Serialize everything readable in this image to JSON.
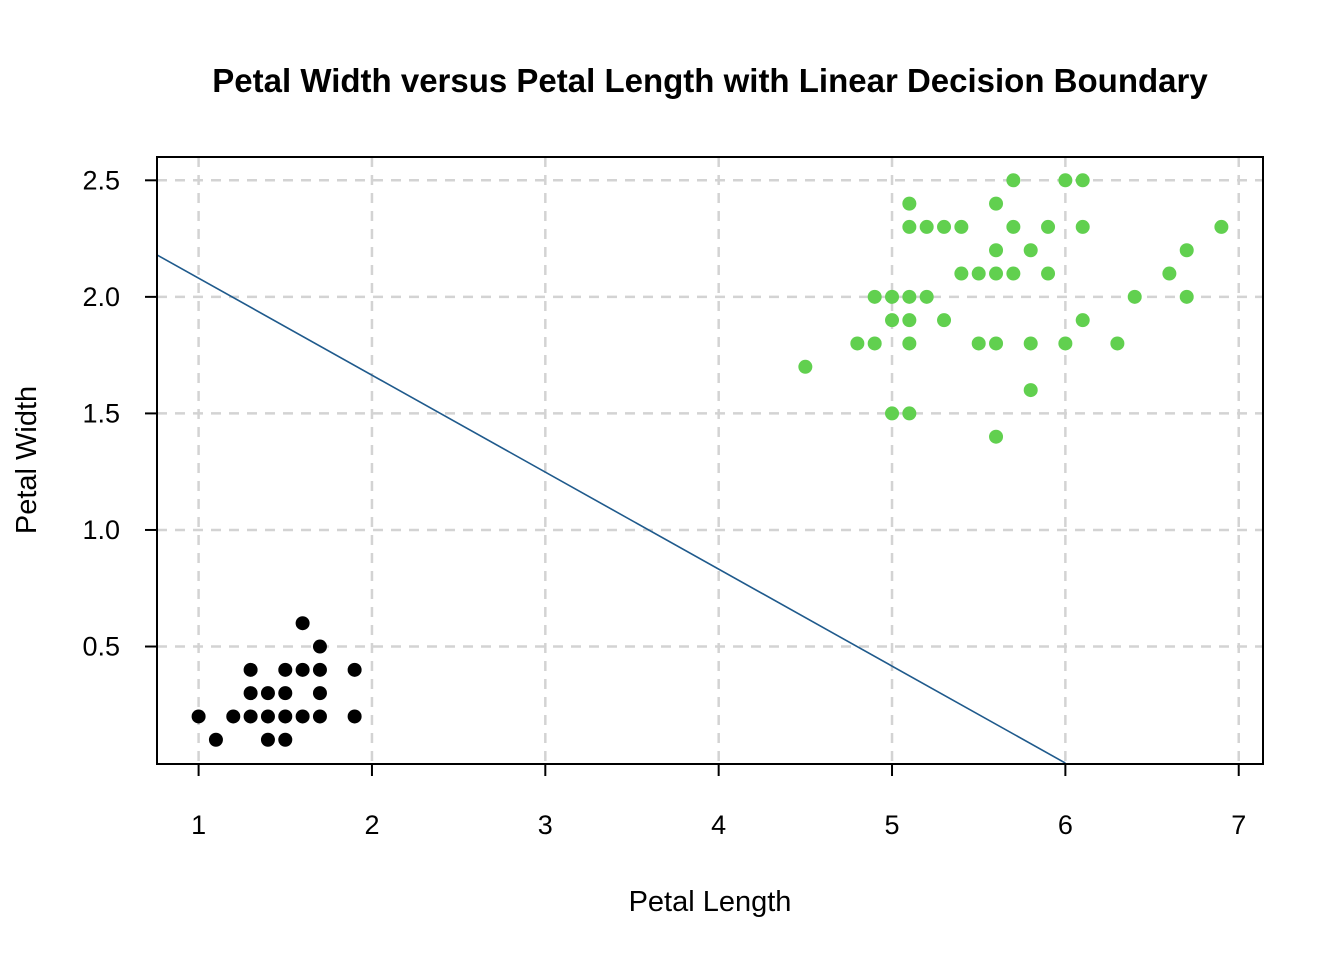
{
  "chart_data": {
    "type": "scatter",
    "title": "Petal Width versus Petal Length with Linear Decision Boundary",
    "xlabel": "Petal Length",
    "ylabel": "Petal Width",
    "xlim": [
      0.76,
      7.14
    ],
    "ylim": [
      -0.004,
      2.6
    ],
    "xticks": [
      1,
      2,
      3,
      4,
      5,
      6,
      7
    ],
    "yticks": [
      0.5,
      1.0,
      1.5,
      2.0,
      2.5
    ],
    "xtick_labels": [
      "1",
      "2",
      "3",
      "4",
      "5",
      "6",
      "7"
    ],
    "ytick_labels": [
      "0.5",
      "1.0",
      "1.5",
      "2.0",
      "2.5"
    ],
    "grid": true,
    "series": [
      {
        "color": "#000000",
        "points": [
          [
            1.0,
            0.2
          ],
          [
            1.1,
            0.1
          ],
          [
            1.2,
            0.2
          ],
          [
            1.3,
            0.2
          ],
          [
            1.3,
            0.3
          ],
          [
            1.3,
            0.4
          ],
          [
            1.4,
            0.1
          ],
          [
            1.4,
            0.2
          ],
          [
            1.4,
            0.3
          ],
          [
            1.5,
            0.1
          ],
          [
            1.5,
            0.2
          ],
          [
            1.5,
            0.3
          ],
          [
            1.5,
            0.4
          ],
          [
            1.6,
            0.2
          ],
          [
            1.6,
            0.4
          ],
          [
            1.6,
            0.6
          ],
          [
            1.7,
            0.2
          ],
          [
            1.7,
            0.3
          ],
          [
            1.7,
            0.4
          ],
          [
            1.7,
            0.5
          ],
          [
            1.9,
            0.2
          ],
          [
            1.9,
            0.4
          ]
        ]
      },
      {
        "color": "#61D04F",
        "points": [
          [
            4.5,
            1.7
          ],
          [
            4.8,
            1.8
          ],
          [
            4.9,
            1.8
          ],
          [
            4.9,
            2.0
          ],
          [
            5.0,
            1.5
          ],
          [
            5.0,
            1.9
          ],
          [
            5.0,
            2.0
          ],
          [
            5.1,
            1.5
          ],
          [
            5.1,
            1.8
          ],
          [
            5.1,
            1.9
          ],
          [
            5.1,
            2.0
          ],
          [
            5.1,
            2.3
          ],
          [
            5.1,
            2.4
          ],
          [
            5.2,
            2.0
          ],
          [
            5.2,
            2.3
          ],
          [
            5.3,
            1.9
          ],
          [
            5.3,
            2.3
          ],
          [
            5.4,
            2.1
          ],
          [
            5.4,
            2.3
          ],
          [
            5.5,
            1.8
          ],
          [
            5.5,
            2.1
          ],
          [
            5.6,
            1.4
          ],
          [
            5.6,
            1.8
          ],
          [
            5.6,
            2.1
          ],
          [
            5.6,
            2.2
          ],
          [
            5.6,
            2.4
          ],
          [
            5.7,
            2.1
          ],
          [
            5.7,
            2.3
          ],
          [
            5.7,
            2.5
          ],
          [
            5.8,
            1.6
          ],
          [
            5.8,
            1.8
          ],
          [
            5.8,
            2.2
          ],
          [
            5.9,
            2.1
          ],
          [
            5.9,
            2.3
          ],
          [
            6.0,
            1.8
          ],
          [
            6.0,
            2.5
          ],
          [
            6.1,
            1.9
          ],
          [
            6.1,
            2.3
          ],
          [
            6.1,
            2.5
          ],
          [
            6.3,
            1.8
          ],
          [
            6.4,
            2.0
          ],
          [
            6.6,
            2.1
          ],
          [
            6.7,
            2.0
          ],
          [
            6.7,
            2.2
          ],
          [
            6.9,
            2.3
          ]
        ]
      }
    ],
    "decision_boundary": {
      "color": "#1F5A8C",
      "from": [
        0.76,
        2.18
      ],
      "to": [
        6.0,
        0.0
      ]
    }
  }
}
